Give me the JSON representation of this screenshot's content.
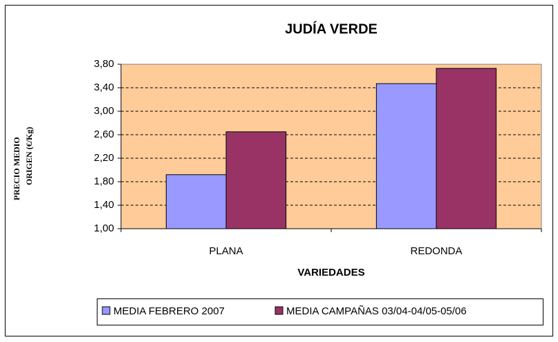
{
  "chart_data": {
    "type": "bar",
    "title": "JUDÍA VERDE",
    "x_label": "VARIEDADES",
    "y_label": [
      "PRECIO MEDIO",
      "ORIGEN (€/Kg)"
    ],
    "categories": [
      "PLANA",
      "REDONDA"
    ],
    "series": [
      {
        "name": "MEDIA FEBRERO 2007",
        "color": "#9999ff",
        "values": [
          1.92,
          3.47
        ]
      },
      {
        "name": "MEDIA CAMPAÑAS 03/04-04/05-05/06",
        "color": "#993366",
        "values": [
          2.65,
          3.73
        ]
      }
    ],
    "ylim": [
      1.0,
      3.8
    ],
    "yticks": [
      {
        "value": 1.0,
        "label": "1,00"
      },
      {
        "value": 1.4,
        "label": "1,40"
      },
      {
        "value": 1.8,
        "label": "1,80"
      },
      {
        "value": 2.2,
        "label": "2,20"
      },
      {
        "value": 2.6,
        "label": "2,60"
      },
      {
        "value": 3.0,
        "label": "3,00"
      },
      {
        "value": 3.4,
        "label": "3,40"
      },
      {
        "value": 3.8,
        "label": "3,80"
      }
    ],
    "grid": true,
    "plot_background": "#ffcc99",
    "legend": "bottom"
  }
}
